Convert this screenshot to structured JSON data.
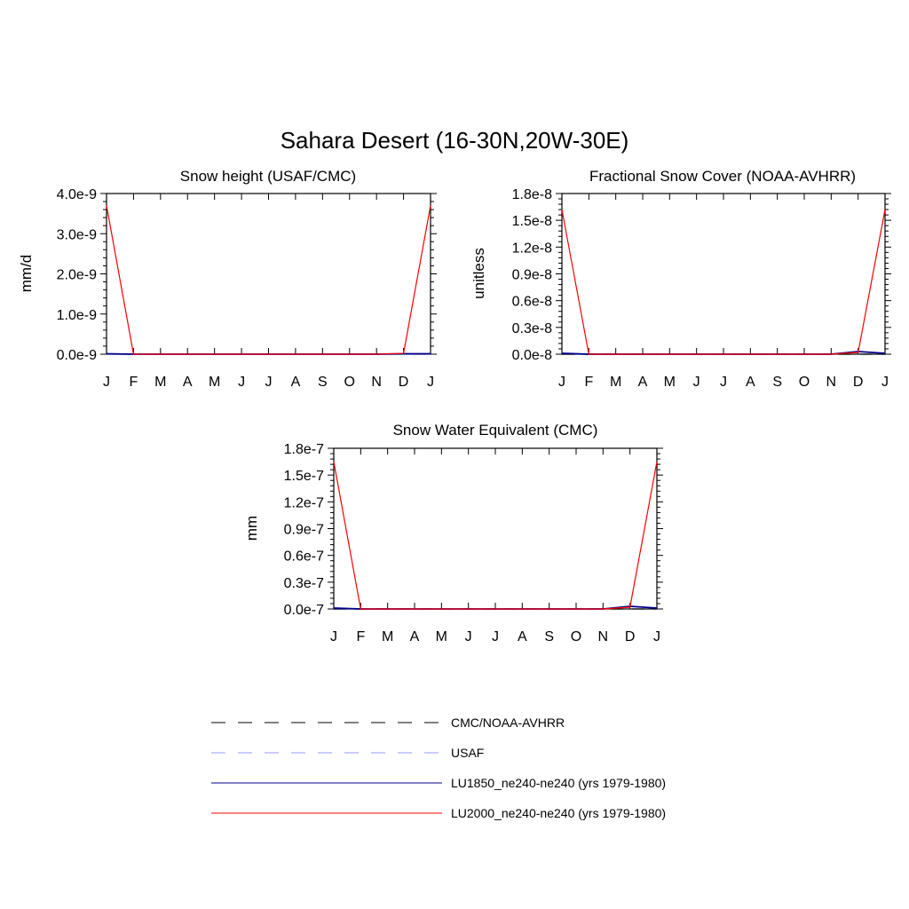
{
  "figure": {
    "title": "Sahara Desert (16-30N,20W-30E)"
  },
  "chart_data": [
    {
      "type": "line",
      "title": "Snow height (USAF/CMC)",
      "xlabel": "",
      "ylabel": "mm/d",
      "x_tick_labels": [
        "J",
        "F",
        "M",
        "A",
        "M",
        "J",
        "J",
        "A",
        "S",
        "O",
        "N",
        "D",
        "J"
      ],
      "y_tick_labels": [
        "0.0e-9",
        "1.0e-9",
        "2.0e-9",
        "3.0e-9",
        "4.0e-9"
      ],
      "ylim": [
        0,
        4e-09
      ],
      "series": [
        {
          "name": "LU2000_ne240-ne240 (yrs 1979-1980)",
          "color": "#ff0000",
          "style": "solid",
          "values": [
            3.7e-09,
            0,
            0,
            0,
            0,
            0,
            0,
            0,
            0,
            0,
            0,
            2e-11,
            3.7e-09
          ]
        },
        {
          "name": "LU1850_ne240-ne240 (yrs 1979-1980)",
          "color": "#00008b",
          "style": "solid",
          "values": [
            1e-11,
            0,
            0,
            0,
            0,
            0,
            0,
            0,
            0,
            0,
            0,
            1e-11,
            1e-11
          ]
        },
        {
          "name": "USAF",
          "color": "#9999ff",
          "style": "dashed",
          "values": [
            0,
            0,
            0,
            0,
            0,
            0,
            0,
            0,
            0,
            0,
            0,
            0,
            0
          ]
        }
      ]
    },
    {
      "type": "line",
      "title": "Fractional Snow Cover (NOAA-AVHRR)",
      "xlabel": "",
      "ylabel": "unitless",
      "x_tick_labels": [
        "J",
        "F",
        "M",
        "A",
        "M",
        "J",
        "J",
        "A",
        "S",
        "O",
        "N",
        "D",
        "J"
      ],
      "y_tick_labels": [
        "0.0e-8",
        "0.3e-8",
        "0.6e-8",
        "0.9e-8",
        "1.2e-8",
        "1.5e-8",
        "1.8e-8"
      ],
      "ylim": [
        0,
        1.8e-08
      ],
      "series": [
        {
          "name": "LU2000_ne240-ne240 (yrs 1979-1980)",
          "color": "#ff0000",
          "style": "solid",
          "values": [
            1.62e-08,
            0,
            0,
            0,
            0,
            0,
            0,
            0,
            0,
            0,
            0,
            2e-10,
            1.62e-08
          ]
        },
        {
          "name": "LU1850_ne240-ne240 (yrs 1979-1980)",
          "color": "#00008b",
          "style": "solid",
          "values": [
            1e-10,
            0,
            0,
            0,
            0,
            0,
            0,
            0,
            0,
            0,
            0,
            3e-10,
            1e-10
          ]
        },
        {
          "name": "CMC/NOAA-AVHRR",
          "color": "#000000",
          "style": "dashed",
          "values": [
            0,
            0,
            0,
            0,
            0,
            0,
            0,
            0,
            0,
            0,
            0,
            0,
            0
          ]
        }
      ]
    },
    {
      "type": "line",
      "title": "Snow Water Equivalent (CMC)",
      "xlabel": "",
      "ylabel": "mm",
      "x_tick_labels": [
        "J",
        "F",
        "M",
        "A",
        "M",
        "J",
        "J",
        "A",
        "S",
        "O",
        "N",
        "D",
        "J"
      ],
      "y_tick_labels": [
        "0.0e-7",
        "0.3e-7",
        "0.6e-7",
        "0.9e-7",
        "1.2e-7",
        "1.5e-7",
        "1.8e-7"
      ],
      "ylim": [
        0,
        1.8e-07
      ],
      "series": [
        {
          "name": "LU2000_ne240-ne240 (yrs 1979-1980)",
          "color": "#ff0000",
          "style": "solid",
          "values": [
            1.65e-07,
            0,
            0,
            0,
            0,
            0,
            0,
            0,
            0,
            0,
            0,
            2e-09,
            1.65e-07
          ]
        },
        {
          "name": "LU1850_ne240-ne240 (yrs 1979-1980)",
          "color": "#00008b",
          "style": "solid",
          "values": [
            1e-09,
            0,
            0,
            0,
            0,
            0,
            0,
            0,
            0,
            0,
            0,
            3e-09,
            1e-09
          ]
        },
        {
          "name": "CMC/NOAA-AVHRR",
          "color": "#000000",
          "style": "dashed",
          "values": [
            0,
            0,
            0,
            0,
            0,
            0,
            0,
            0,
            0,
            0,
            0,
            0,
            0
          ]
        }
      ]
    }
  ],
  "legend": {
    "entries": [
      {
        "label": "CMC/NOAA-AVHRR",
        "color": "#000000",
        "style": "dashed"
      },
      {
        "label": "USAF",
        "color": "#9999ff",
        "style": "dashed"
      },
      {
        "label": "LU1850_ne240-ne240 (yrs 1979-1980)",
        "color": "#00008b",
        "style": "solid"
      },
      {
        "label": "LU2000_ne240-ne240 (yrs 1979-1980)",
        "color": "#ff0000",
        "style": "solid"
      }
    ]
  }
}
